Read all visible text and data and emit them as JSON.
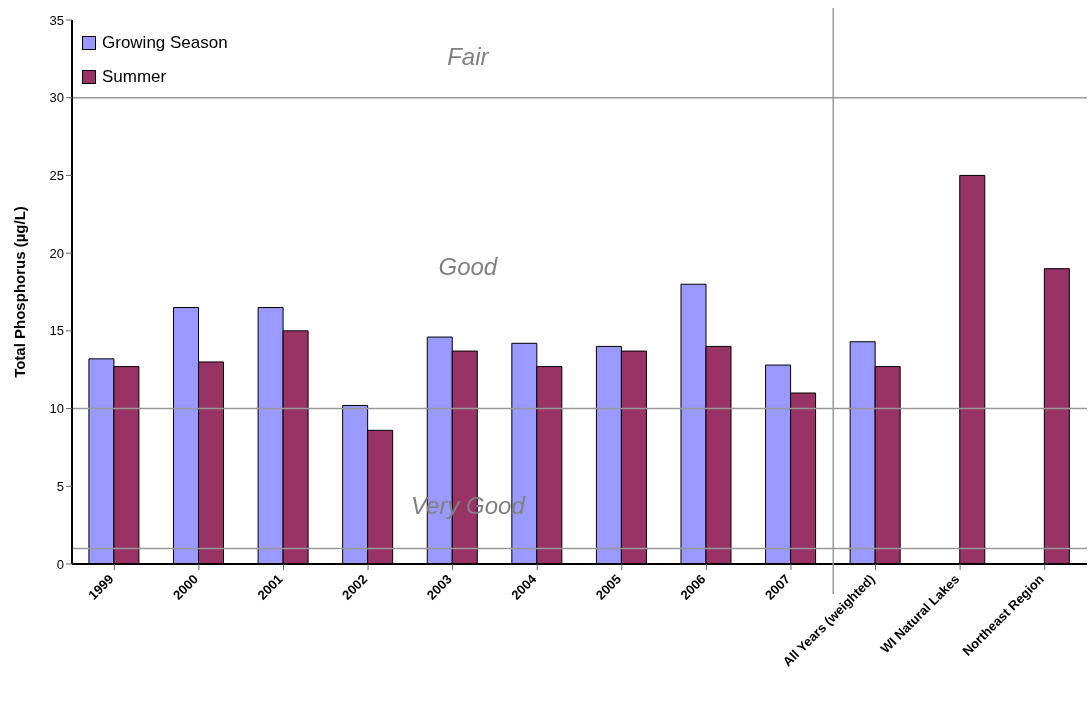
{
  "chart_data": {
    "type": "bar",
    "ylabel": "Total Phosphorus (µg/L)",
    "categories": [
      "1999",
      "2000",
      "2001",
      "2002",
      "2003",
      "2004",
      "2005",
      "2006",
      "2007",
      "All Years (weighted)",
      "WI Natural Lakes",
      "Northeast Region"
    ],
    "series": [
      {
        "name": "Growing Season",
        "color": "#9999ff",
        "values": [
          13.2,
          16.5,
          16.5,
          10.2,
          14.6,
          14.2,
          14.0,
          18.0,
          12.8,
          14.3,
          null,
          null
        ]
      },
      {
        "name": "Summer",
        "color": "#993366",
        "values": [
          12.7,
          13.0,
          15.0,
          8.6,
          13.7,
          12.7,
          13.7,
          14.0,
          11.0,
          12.7,
          25.0,
          19.0
        ]
      }
    ],
    "ylim": [
      0,
      35
    ],
    "yticks": [
      0,
      5,
      10,
      15,
      20,
      25,
      30,
      35
    ],
    "ref_lines": [
      {
        "axis": "y",
        "value": 1,
        "color": "#999999"
      },
      {
        "axis": "y",
        "value": 10,
        "color": "#999999"
      },
      {
        "axis": "y",
        "value": 30,
        "color": "#999999"
      }
    ],
    "annotations": [
      "Fair",
      "Good",
      "Very Good"
    ],
    "grid": false,
    "legend": "top left"
  }
}
